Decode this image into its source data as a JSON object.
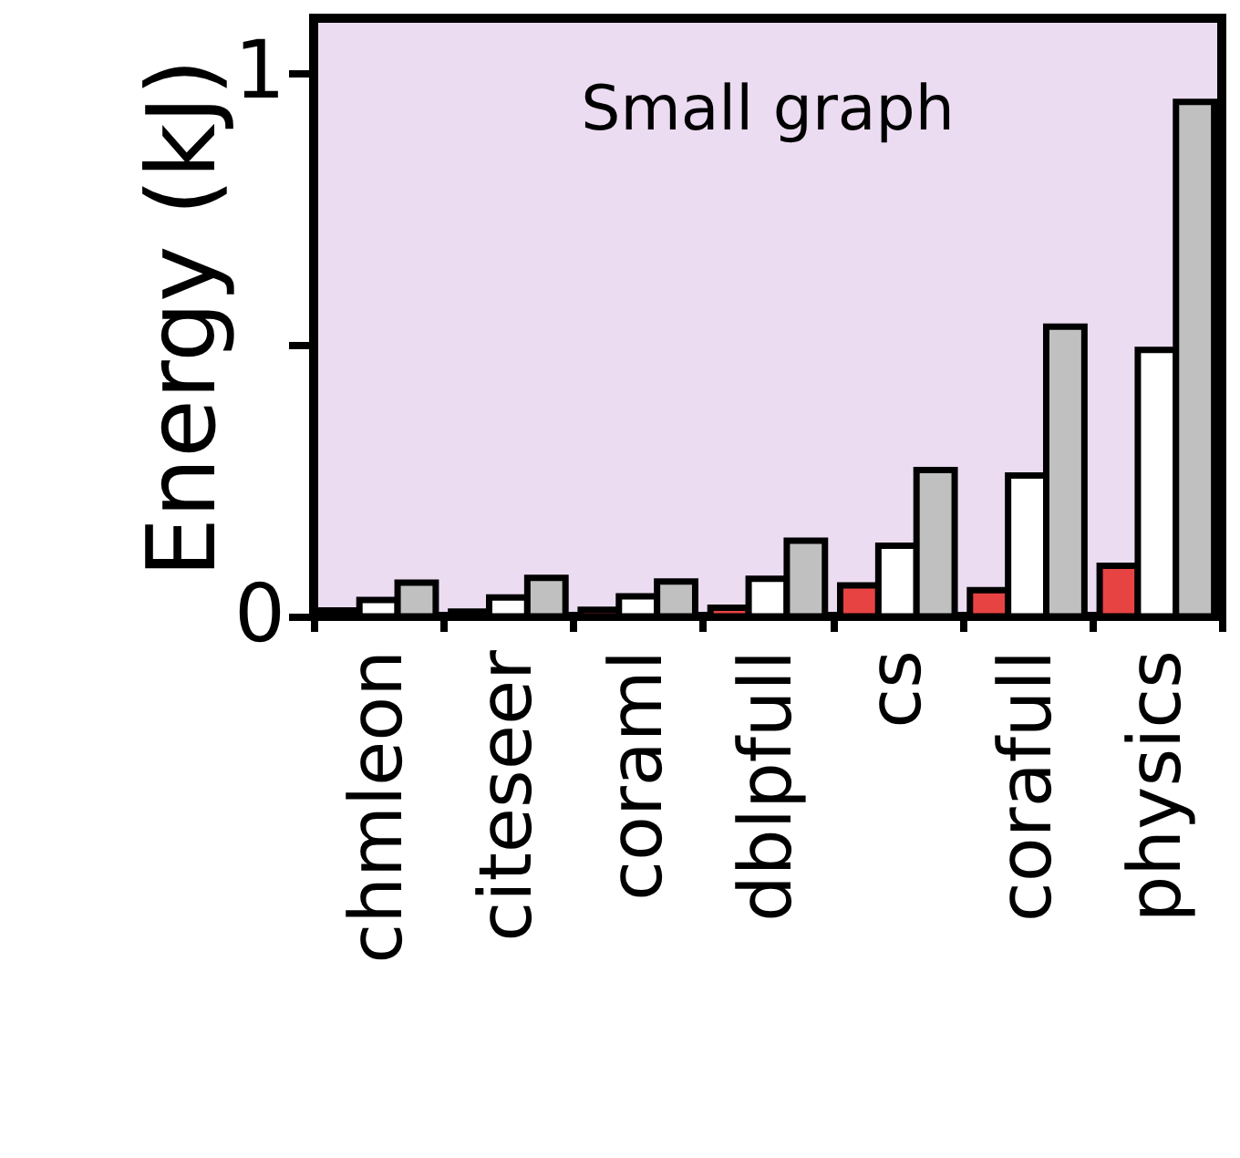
{
  "chart_data": {
    "type": "bar",
    "title": "Small graph",
    "ylabel": "Energy (kJ)",
    "categories": [
      "chmleon",
      "citeseer",
      "coraml",
      "dblpfull",
      "cs",
      "corafull",
      "physics"
    ],
    "series": [
      {
        "color": "#e84343",
        "values": [
          0.011,
          0.009,
          0.012,
          0.016,
          0.057,
          0.048,
          0.093
        ]
      },
      {
        "color": "#ffffff",
        "values": [
          0.03,
          0.035,
          0.037,
          0.069,
          0.13,
          0.259,
          0.49
        ]
      },
      {
        "color": "#c0c0c0",
        "values": [
          0.062,
          0.071,
          0.064,
          0.139,
          0.269,
          0.533,
          0.946
        ]
      }
    ],
    "ylim": [
      0,
      1.1
    ],
    "yticks": [
      0,
      {
        "value": 0.5,
        "label": null
      },
      1
    ],
    "grid": false,
    "legend": false
  }
}
